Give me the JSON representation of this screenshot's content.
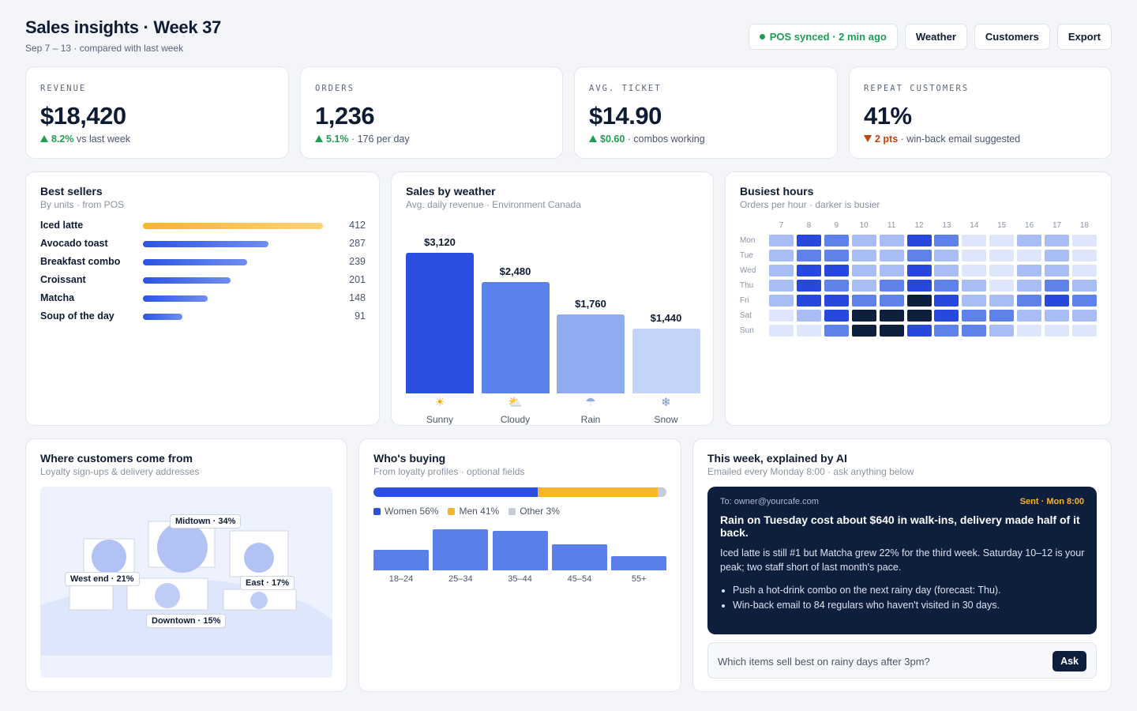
{
  "header": {
    "title": "Sales insights · Week 37",
    "subtitle": "Sep 7 – 13 · compared with last week",
    "sync_status": "POS synced · 2 min ago",
    "buttons": [
      "Weather",
      "Customers",
      "Export"
    ]
  },
  "kpis": [
    {
      "label": "REVENUE",
      "value": "$18,420",
      "delta": "8.2%",
      "direction": "up",
      "note": " vs last week"
    },
    {
      "label": "ORDERS",
      "value": "1,236",
      "delta": "5.1%",
      "direction": "up",
      "note": " · 176 per day"
    },
    {
      "label": "AVG. TICKET",
      "value": "$14.90",
      "delta": "$0.60",
      "direction": "up",
      "note": " · combos working"
    },
    {
      "label": "REPEAT CUSTOMERS",
      "value": "41%",
      "delta": "2 pts",
      "direction": "down",
      "note": " · win-back email suggested"
    }
  ],
  "best_sellers": {
    "title": "Best sellers",
    "subtitle": "By units · from POS",
    "items": [
      {
        "name": "Iced latte",
        "units": 412
      },
      {
        "name": "Avocado toast",
        "units": 287
      },
      {
        "name": "Breakfast combo",
        "units": 239
      },
      {
        "name": "Croissant",
        "units": 201
      },
      {
        "name": "Matcha",
        "units": 148
      },
      {
        "name": "Soup of the day",
        "units": 91
      }
    ]
  },
  "weather": {
    "title": "Sales by weather",
    "subtitle": "Avg. daily revenue · Environment Canada",
    "bars": [
      {
        "label": "Sunny",
        "value": 3120,
        "value_label": "$3,120",
        "icon": "sun-icon",
        "glyph": "☀",
        "color": "#2b4fe0"
      },
      {
        "label": "Cloudy",
        "value": 2480,
        "value_label": "$2,480",
        "icon": "cloud-sun-icon",
        "glyph": "⛅",
        "color": "#5b82ea"
      },
      {
        "label": "Rain",
        "value": 1760,
        "value_label": "$1,760",
        "icon": "rain-icon",
        "glyph": "☂",
        "color": "#8fabf2"
      },
      {
        "label": "Snow",
        "value": 1440,
        "value_label": "$1,440",
        "icon": "snow-icon",
        "glyph": "❄",
        "color": "#c3d3fa"
      }
    ],
    "max": 3120
  },
  "busiest": {
    "title": "Busiest hours",
    "subtitle": "Orders per hour · darker is busier",
    "hours": [
      "7",
      "8",
      "9",
      "10",
      "11",
      "12",
      "13",
      "14",
      "15",
      "16",
      "17",
      "18"
    ],
    "days": [
      "Mon",
      "Tue",
      "Wed",
      "Thu",
      "Fri",
      "Sat",
      "Sun"
    ],
    "levels": [
      [
        2,
        4,
        3,
        2,
        2,
        4,
        3,
        1,
        1,
        2,
        2,
        1
      ],
      [
        2,
        3,
        3,
        2,
        2,
        3,
        2,
        1,
        1,
        1,
        2,
        1
      ],
      [
        2,
        4,
        4,
        2,
        2,
        4,
        2,
        1,
        1,
        2,
        2,
        1
      ],
      [
        2,
        4,
        3,
        2,
        3,
        4,
        3,
        2,
        1,
        2,
        3,
        2
      ],
      [
        2,
        4,
        4,
        3,
        3,
        5,
        4,
        2,
        2,
        3,
        4,
        3
      ],
      [
        1,
        2,
        4,
        5,
        5,
        5,
        4,
        3,
        3,
        2,
        2,
        2
      ],
      [
        1,
        1,
        3,
        5,
        5,
        4,
        3,
        3,
        2,
        1,
        1,
        1
      ]
    ],
    "palette": [
      "#f1f4fc",
      "#dde6fb",
      "#a9bdf5",
      "#5e82ea",
      "#2847dd",
      "#0e1e3d"
    ]
  },
  "map": {
    "title": "Where customers come from",
    "subtitle": "Loyalty sign-ups & delivery addresses",
    "areas": [
      {
        "name": "Midtown",
        "label": "Midtown · 34%"
      },
      {
        "name": "West end",
        "label": "West end · 21%"
      },
      {
        "name": "East",
        "label": "East · 17%"
      },
      {
        "name": "Downtown",
        "label": "Downtown · 15%"
      }
    ]
  },
  "buyers": {
    "title": "Who's buying",
    "subtitle": "From loyalty profiles · optional fields",
    "gender": [
      {
        "label": "Women 56%",
        "share": 56,
        "color": "#2b4fe0"
      },
      {
        "label": "Men 41%",
        "share": 41,
        "color": "#f7b52b"
      },
      {
        "label": "Other 3%",
        "share": 3,
        "color": "#c5ccd8"
      }
    ],
    "ages": [
      {
        "label": "18–24",
        "value": 26
      },
      {
        "label": "25–34",
        "value": 52
      },
      {
        "label": "35–44",
        "value": 50
      },
      {
        "label": "45–54",
        "value": 33
      },
      {
        "label": "55+",
        "value": 18
      }
    ],
    "age_max": 52
  },
  "ai": {
    "title": "This week, explained by AI",
    "subtitle": "Emailed every Monday 8:00 · ask anything below",
    "to": "To: owner@yourcafe.com",
    "sent": "Sent · Mon 8:00",
    "headline": "Rain on Tuesday cost about $640 in walk-ins, delivery made half of it back.",
    "body": "Iced latte is still #1 but Matcha grew 22% for the third week. Saturday 10–12 is your peak; two staff short of last month's pace.",
    "bullets": [
      "Push a hot-drink combo on the next rainy day (forecast: Thu).",
      "Win-back email to 84 regulars who haven't visited in 30 days."
    ],
    "ask_placeholder": "Which items sell best on rainy days after 3pm?",
    "ask_button": "Ask"
  }
}
